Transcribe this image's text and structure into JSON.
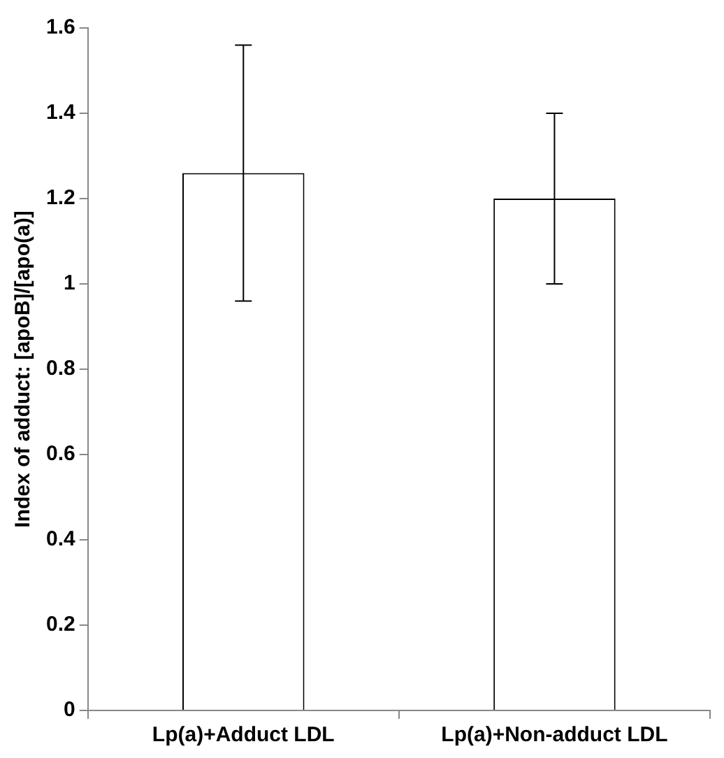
{
  "chart_data": {
    "type": "bar",
    "ylabel": "Index of adduct: [apoB]/[apo(a)]",
    "categories": [
      "Lp(a)+Adduct LDL",
      "Lp(a)+Non-adduct LDL"
    ],
    "values": [
      1.26,
      1.2
    ],
    "errors": [
      0.3,
      0.2
    ],
    "color": "#ffffff",
    "ylim": [
      0,
      1.6
    ],
    "yticks": [
      0,
      0.2,
      0.4,
      0.6,
      0.8,
      1,
      1.2,
      1.4,
      1.6
    ],
    "grid": false,
    "legend": false
  }
}
